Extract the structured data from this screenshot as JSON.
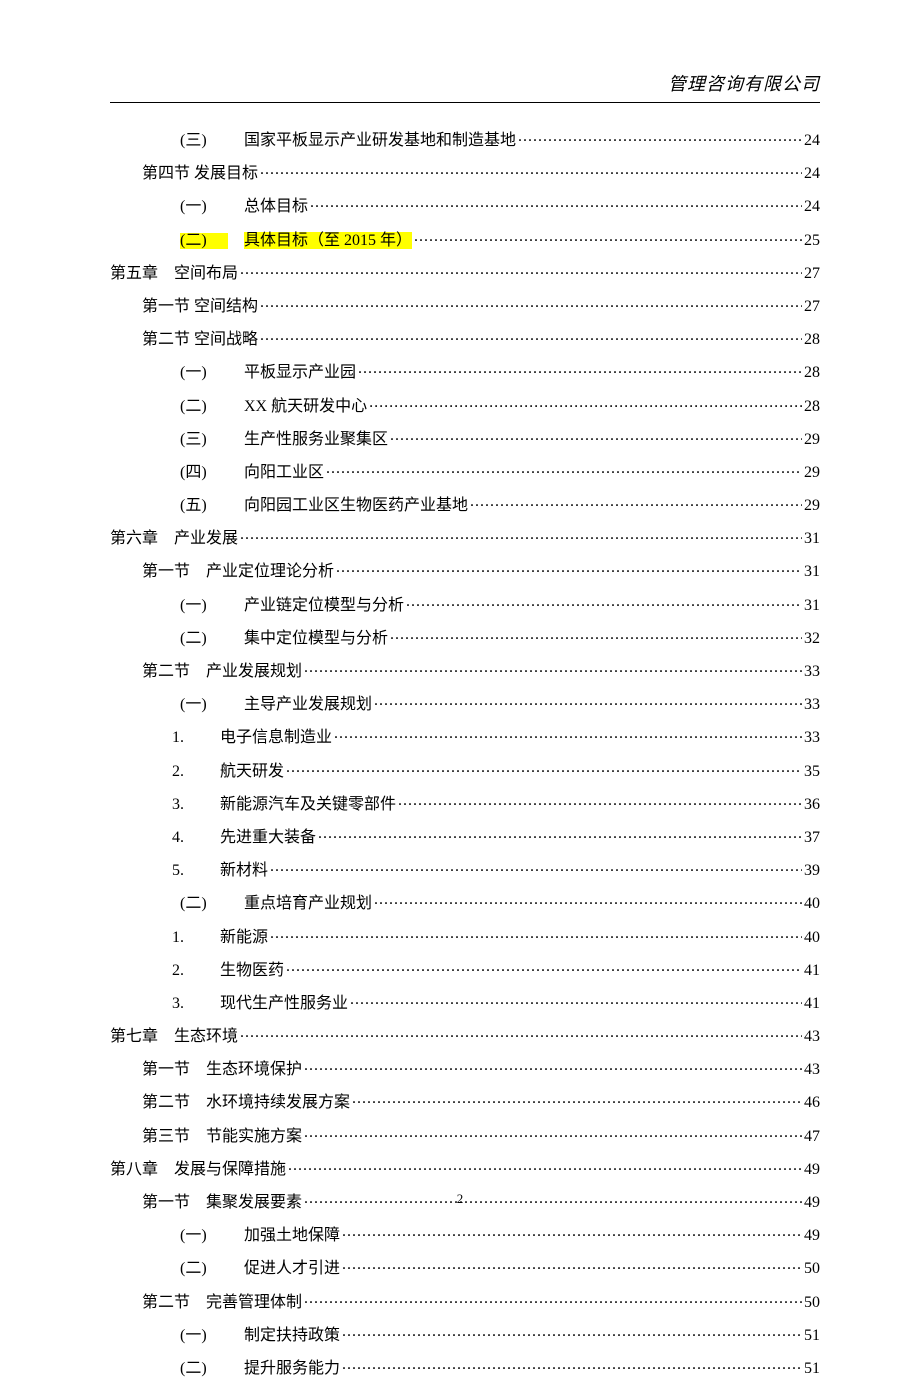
{
  "header": {
    "company": "管理咨询有限公司"
  },
  "footer": {
    "page_number": "2"
  },
  "toc": {
    "entries": [
      {
        "level": 2,
        "marker": "(三)",
        "title": "国家平板显示产业研发基地和制造基地",
        "page": "24",
        "highlight": false
      },
      {
        "level": 1,
        "marker": "第四节",
        "title": "发展目标",
        "page": "24",
        "highlight": false,
        "nospace": true
      },
      {
        "level": 2,
        "marker": "(一)",
        "title": "总体目标",
        "page": "24",
        "highlight": false
      },
      {
        "level": 2,
        "marker": "(二)",
        "title": "具体目标（至 2015 年）",
        "page": "25",
        "highlight": true
      },
      {
        "level": 0,
        "marker": "第五章",
        "title": "空间布局",
        "page": "27",
        "highlight": false
      },
      {
        "level": 1,
        "marker": "第一节",
        "title": "空间结构",
        "page": "27",
        "highlight": false,
        "nospace": true
      },
      {
        "level": 1,
        "marker": "第二节",
        "title": "空间战略",
        "page": "28",
        "highlight": false,
        "nospace": true
      },
      {
        "level": 2,
        "marker": "(一)",
        "title": "平板显示产业园",
        "page": "28",
        "highlight": false
      },
      {
        "level": 2,
        "marker": "(二)",
        "title": "XX 航天研发中心",
        "page": "28",
        "highlight": false
      },
      {
        "level": 2,
        "marker": "(三)",
        "title": "生产性服务业聚集区",
        "page": "29",
        "highlight": false
      },
      {
        "level": 2,
        "marker": "(四)",
        "title": "向阳工业区",
        "page": "29",
        "highlight": false
      },
      {
        "level": 2,
        "marker": "(五)",
        "title": "向阳园工业区生物医药产业基地",
        "page": "29",
        "highlight": false
      },
      {
        "level": 0,
        "marker": "第六章",
        "title": "产业发展",
        "page": "31",
        "highlight": false
      },
      {
        "level": 1,
        "marker": "第一节",
        "title": "产业定位理论分析",
        "page": "31",
        "highlight": false
      },
      {
        "level": 2,
        "marker": "(一)",
        "title": "产业链定位模型与分析",
        "page": "31",
        "highlight": false
      },
      {
        "level": 2,
        "marker": "(二)",
        "title": "集中定位模型与分析",
        "page": "32",
        "highlight": false
      },
      {
        "level": 1,
        "marker": "第二节",
        "title": "产业发展规划",
        "page": "33",
        "highlight": false
      },
      {
        "level": 2,
        "marker": "(一)",
        "title": "主导产业发展规划",
        "page": "33",
        "highlight": false
      },
      {
        "level": 3,
        "marker": "1.",
        "title": "电子信息制造业",
        "page": "33",
        "highlight": false
      },
      {
        "level": 3,
        "marker": "2.",
        "title": "航天研发",
        "page": "35",
        "highlight": false
      },
      {
        "level": 3,
        "marker": "3.",
        "title": "新能源汽车及关键零部件",
        "page": "36",
        "highlight": false
      },
      {
        "level": 3,
        "marker": "4.",
        "title": "先进重大装备",
        "page": "37",
        "highlight": false
      },
      {
        "level": 3,
        "marker": "5.",
        "title": "新材料",
        "page": "39",
        "highlight": false
      },
      {
        "level": 2,
        "marker": "(二)",
        "title": "重点培育产业规划",
        "page": "40",
        "highlight": false
      },
      {
        "level": 3,
        "marker": "1.",
        "title": "新能源",
        "page": "40",
        "highlight": false
      },
      {
        "level": 3,
        "marker": "2.",
        "title": "生物医药",
        "page": "41",
        "highlight": false
      },
      {
        "level": 3,
        "marker": "3.",
        "title": "现代生产性服务业",
        "page": "41",
        "highlight": false
      },
      {
        "level": 0,
        "marker": "第七章",
        "title": "生态环境",
        "page": "43",
        "highlight": false
      },
      {
        "level": 1,
        "marker": "第一节",
        "title": "生态环境保护",
        "page": "43",
        "highlight": false
      },
      {
        "level": 1,
        "marker": "第二节",
        "title": "水环境持续发展方案",
        "page": "46",
        "highlight": false
      },
      {
        "level": 1,
        "marker": "第三节",
        "title": "节能实施方案",
        "page": "47",
        "highlight": false
      },
      {
        "level": 0,
        "marker": "第八章",
        "title": "发展与保障措施",
        "page": "49",
        "highlight": false
      },
      {
        "level": 1,
        "marker": "第一节",
        "title": "集聚发展要素",
        "page": "49",
        "highlight": false
      },
      {
        "level": 2,
        "marker": "(一)",
        "title": "加强土地保障",
        "page": "49",
        "highlight": false
      },
      {
        "level": 2,
        "marker": "(二)",
        "title": "促进人才引进",
        "page": "50",
        "highlight": false
      },
      {
        "level": 1,
        "marker": "第二节",
        "title": "完善管理体制",
        "page": "50",
        "highlight": false
      },
      {
        "level": 2,
        "marker": "(一)",
        "title": "制定扶持政策",
        "page": "51",
        "highlight": false
      },
      {
        "level": 2,
        "marker": "(二)",
        "title": "提升服务能力",
        "page": "51",
        "highlight": false
      }
    ]
  },
  "style": {
    "highlight_color": "#ffff00",
    "text_color": "#000000",
    "page_bg": "#ffffff"
  }
}
